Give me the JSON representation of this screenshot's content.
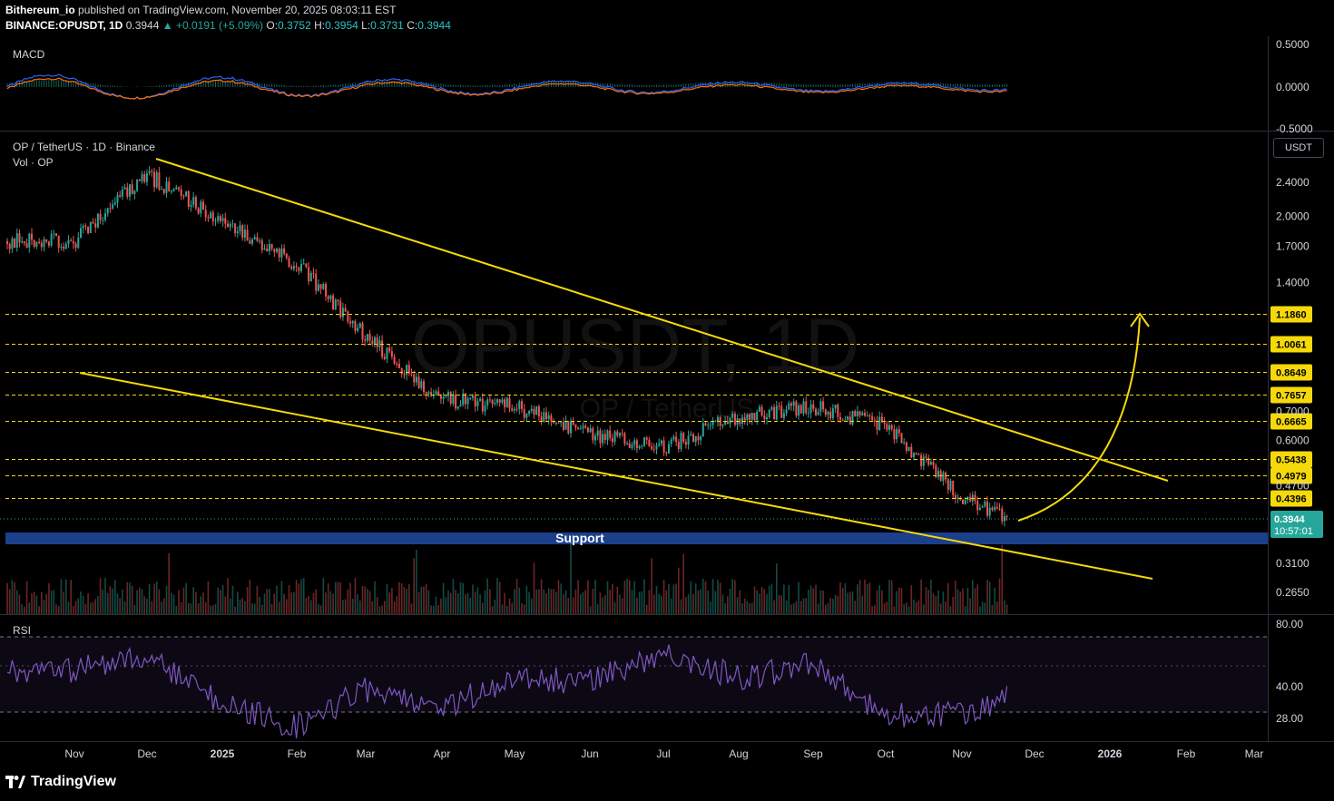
{
  "header": {
    "publisher": "Bithereum_io",
    "published_text": "published on TradingView.com, November 20, 2025 08:03:11 EST",
    "symbol": "BINANCE:OPUSDT, 1D",
    "last": "0.3944",
    "change": "▲ +0.0191 (+5.09%)",
    "o_label": "O:",
    "o": "0.3752",
    "h_label": "H:",
    "h": "0.3954",
    "l_label": "L:",
    "l": "0.3731",
    "c_label": "C:",
    "c": "0.3944"
  },
  "panels": {
    "macd_title": "MACD",
    "main_title": "OP / TetherUS · 1D · Binance",
    "vol_title": "Vol · OP",
    "rsi_title": "RSI",
    "currency_button": "USDT",
    "watermark_main": "OPUSDT, 1D",
    "watermark_sub": "OP / TetherUS",
    "support_label": "Support",
    "last_price_tag": "0.3944",
    "countdown": "10:57:01"
  },
  "footer": {
    "brand": "TradingView",
    "logo_icon": "tradingview-logo-icon"
  },
  "colors": {
    "bull": "#26a69a",
    "bear": "#ef5350",
    "trendline": "#f5d90a",
    "level": "#f5d90a",
    "support_band": "#1c3f8c",
    "rsi": "#7e57c2",
    "macd": "#2962ff",
    "signal": "#ff6d00"
  },
  "chart_data": [
    {
      "type": "line",
      "title": "MACD",
      "ylim": [
        -0.5,
        0.5
      ],
      "y_ticks": [
        "0.5000",
        "0.0000",
        "-0.5000"
      ],
      "series": []
    },
    {
      "type": "candlestick",
      "title": "OP / TetherUS · 1D · Binance",
      "y_scale": "log",
      "y_ticks": [
        "2.4000",
        "2.0000",
        "1.7000",
        "1.4000",
        "0.7000",
        "0.6000",
        "0.4700",
        "0.3100",
        "0.2650"
      ],
      "x_ticks": [
        "Nov",
        "Dec",
        "2025",
        "Feb",
        "Mar",
        "Apr",
        "May",
        "Jun",
        "Jul",
        "Aug",
        "Sep",
        "Oct",
        "Nov",
        "Dec",
        "2026",
        "Feb",
        "Mar"
      ],
      "x": [
        "2024-11",
        "2024-12",
        "2025-01",
        "2025-02",
        "2025-03",
        "2025-04",
        "2025-05",
        "2025-06",
        "2025-07",
        "2025-08",
        "2025-09",
        "2025-10",
        "2025-11",
        "2025-11-20"
      ],
      "series": [
        {
          "values": [
            1.75,
            2.5,
            1.95,
            1.55,
            1.05,
            0.75,
            0.72,
            0.62,
            0.58,
            0.68,
            0.72,
            0.65,
            0.44,
            0.3944
          ]
        }
      ],
      "levels": [
        "1.1860",
        "1.0061",
        "0.8649",
        "0.7657",
        "0.6665",
        "0.5438",
        "0.4979",
        "0.4396"
      ],
      "support_zone": [
        0.345,
        0.365
      ],
      "last_price": "0.3944"
    },
    {
      "type": "line",
      "title": "RSI",
      "ylim": [
        20,
        85
      ],
      "y_ticks": [
        "80.00",
        "40.00",
        "28.00"
      ],
      "series": [
        {
          "values": [
            62,
            70,
            45,
            32,
            52,
            42,
            58,
            56,
            72,
            58,
            65,
            38,
            40,
            47
          ]
        }
      ]
    }
  ]
}
